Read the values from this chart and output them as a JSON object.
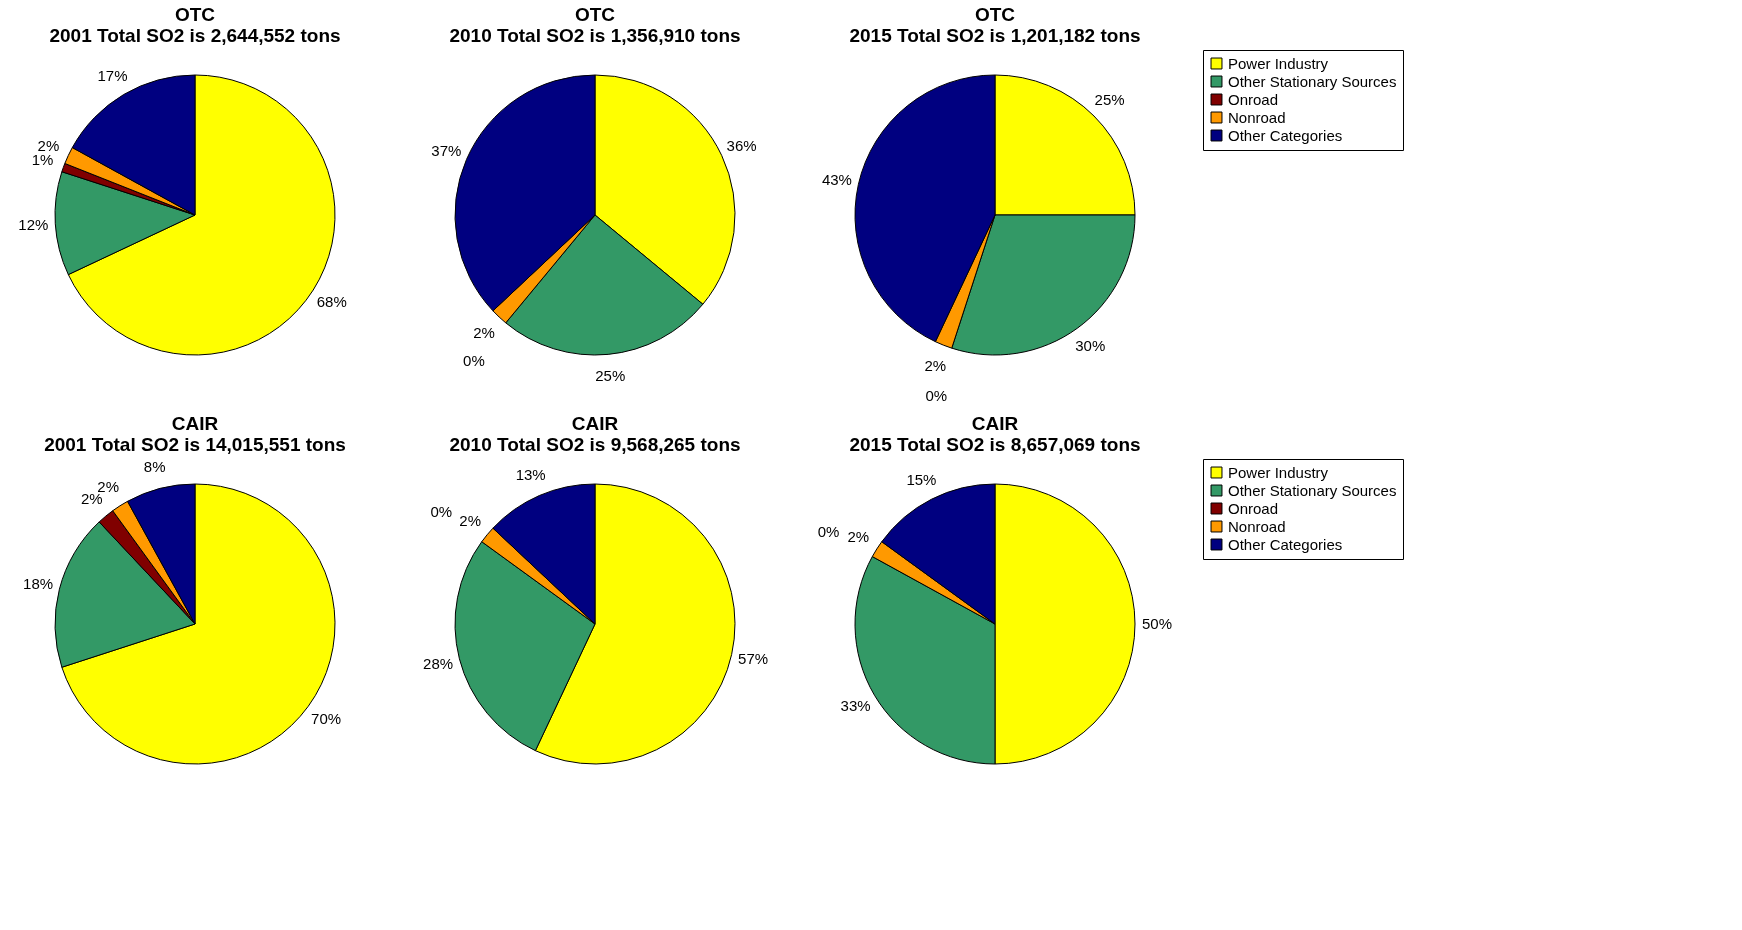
{
  "chart_data": [
    {
      "type": "pie",
      "title": "OTC\n2001 Total SO2 is 2,644,552 tons",
      "categories": [
        null,
        null,
        null,
        null,
        null
      ],
      "values": [
        68,
        12,
        1,
        2,
        17
      ],
      "value_labels": [
        "68%",
        "12%",
        "1%",
        "2%",
        "17%"
      ],
      "colors": [
        "#ffff00",
        "#339966",
        "#800000",
        "#ff9900",
        "#000080"
      ],
      "legend": false
    },
    {
      "type": "pie",
      "title": "OTC\n2010 Total SO2 is 1,356,910 tons",
      "categories": [
        null,
        null,
        null,
        null,
        null
      ],
      "values": [
        36,
        25,
        0,
        2,
        37
      ],
      "value_labels": [
        "36%",
        "25%",
        "0%",
        "2%",
        "37%"
      ],
      "colors": [
        "#ffff00",
        "#339966",
        "#800000",
        "#ff9900",
        "#000080"
      ],
      "legend": false
    },
    {
      "type": "pie",
      "title": "OTC\n2015 Total SO2 is 1,201,182 tons",
      "categories": [
        "Power Industry",
        "Other Stationary Sources",
        "Onroad",
        "Nonroad",
        "Other Categories"
      ],
      "values": [
        25,
        30,
        0,
        2,
        43
      ],
      "value_labels": [
        "25%",
        "30%",
        "0%",
        "2%",
        "43%"
      ],
      "colors": [
        "#ffff00",
        "#339966",
        "#800000",
        "#ff9900",
        "#000080"
      ],
      "legend": "right"
    },
    {
      "type": "pie",
      "title": "CAIR\n2001 Total SO2 is 14,015,551 tons",
      "categories": [
        null,
        null,
        null,
        null,
        null
      ],
      "values": [
        70,
        18,
        2,
        2,
        8
      ],
      "value_labels": [
        "70%",
        "18%",
        "2%",
        "2%",
        "8%"
      ],
      "colors": [
        "#ffff00",
        "#339966",
        "#800000",
        "#ff9900",
        "#000080"
      ],
      "legend": false
    },
    {
      "type": "pie",
      "title": "CAIR\n2010 Total SO2 is 9,568,265 tons",
      "categories": [
        null,
        null,
        null,
        null,
        null
      ],
      "values": [
        57,
        28,
        0,
        2,
        13
      ],
      "value_labels": [
        "57%",
        "28%",
        "0%",
        "2%",
        "13%"
      ],
      "colors": [
        "#ffff00",
        "#339966",
        "#800000",
        "#ff9900",
        "#000080"
      ],
      "legend": false
    },
    {
      "type": "pie",
      "title": "CAIR\n2015 Total SO2 is 8,657,069 tons",
      "categories": [
        "Power Industry",
        "Other Stationary Sources",
        "Onroad",
        "Nonroad",
        "Other Categories"
      ],
      "values": [
        50,
        33,
        0,
        2,
        15
      ],
      "value_labels": [
        "50%",
        "33%",
        "0%",
        "2%",
        "15%"
      ],
      "colors": [
        "#ffff00",
        "#339966",
        "#800000",
        "#ff9900",
        "#000080"
      ],
      "legend": "right"
    }
  ]
}
